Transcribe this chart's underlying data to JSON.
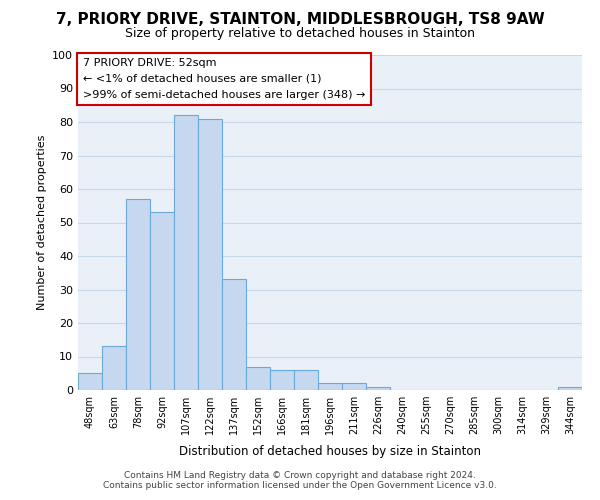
{
  "title1": "7, PRIORY DRIVE, STAINTON, MIDDLESBROUGH, TS8 9AW",
  "title2": "Size of property relative to detached houses in Stainton",
  "xlabel": "Distribution of detached houses by size in Stainton",
  "ylabel": "Number of detached properties",
  "categories": [
    "48sqm",
    "63sqm",
    "78sqm",
    "92sqm",
    "107sqm",
    "122sqm",
    "137sqm",
    "152sqm",
    "166sqm",
    "181sqm",
    "196sqm",
    "211sqm",
    "226sqm",
    "240sqm",
    "255sqm",
    "270sqm",
    "285sqm",
    "300sqm",
    "314sqm",
    "329sqm",
    "344sqm"
  ],
  "values": [
    5,
    13,
    57,
    53,
    82,
    81,
    33,
    7,
    6,
    6,
    2,
    2,
    1,
    0,
    0,
    0,
    0,
    0,
    0,
    0,
    1
  ],
  "bar_fill_color": "#c5d8ef",
  "bar_edge_color": "#6aaad4",
  "annotation_box_text": "7 PRIORY DRIVE: 52sqm\n← <1% of detached houses are smaller (1)\n>99% of semi-detached houses are larger (348) →",
  "annotation_box_facecolor": "#ffffff",
  "annotation_box_edgecolor": "#cc0000",
  "footer": "Contains HM Land Registry data © Crown copyright and database right 2024.\nContains public sector information licensed under the Open Government Licence v3.0.",
  "ylim": [
    0,
    100
  ],
  "yticks": [
    0,
    10,
    20,
    30,
    40,
    50,
    60,
    70,
    80,
    90,
    100
  ],
  "background_color": "#ffffff",
  "plot_bg_color": "#eaf0f8",
  "grid_color": "#c8d8ea",
  "title1_fontsize": 11,
  "title2_fontsize": 9
}
